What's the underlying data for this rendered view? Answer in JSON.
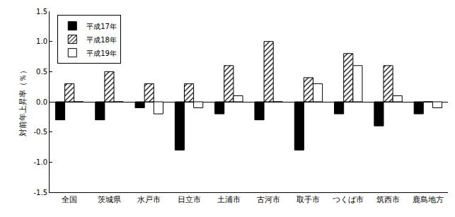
{
  "chart_data": {
    "type": "bar",
    "y_label": "対前年上昇率（％）",
    "categories": [
      "全国",
      "茨城県",
      "水戸市",
      "日立市",
      "土浦市",
      "古河市",
      "取手市",
      "つくば市",
      "筑西市",
      "鹿島地方"
    ],
    "series": [
      {
        "name": "平成17年",
        "color": "#000000",
        "values": [
          -0.3,
          -0.3,
          -0.1,
          -0.8,
          -0.2,
          -0.3,
          -0.8,
          -0.2,
          -0.4,
          -0.2
        ]
      },
      {
        "name": "平成18年",
        "color": "#ffffff",
        "values": [
          0.3,
          0.5,
          0.3,
          0.3,
          0.6,
          1.0,
          0.4,
          0.8,
          0.6,
          0.0
        ]
      },
      {
        "name": "平成19年",
        "color": "#ffffff",
        "values": [
          0.0,
          0.0,
          -0.2,
          -0.1,
          0.1,
          0.0,
          0.3,
          0.6,
          0.1,
          -0.1
        ]
      }
    ],
    "ylim": [
      -1.5,
      1.5
    ],
    "yticks": [
      -1.5,
      {
        "value": -1.0,
        "label": "-1.0"
      },
      -0.5,
      {
        "value": 0.0,
        "label": "0.0"
      },
      0.5,
      {
        "value": 1.0,
        "label": "1.0"
      },
      1.5
    ],
    "grid": false,
    "legend": "upper left"
  }
}
